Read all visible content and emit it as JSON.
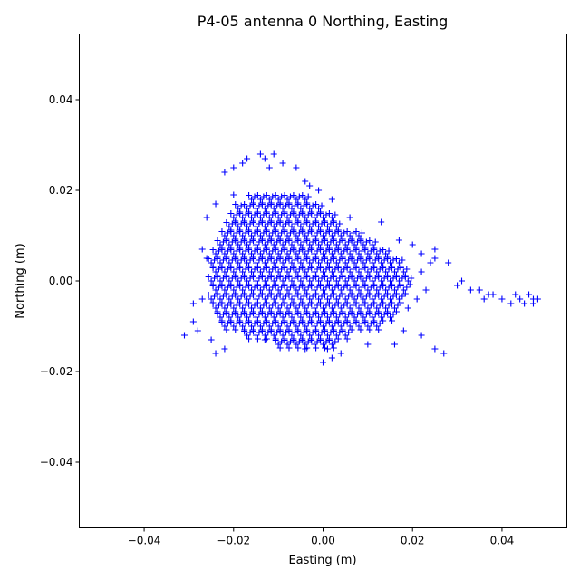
{
  "chart_data": {
    "type": "scatter",
    "title": "P4-05 antenna 0 Northing, Easting",
    "xlabel": "Easting (m)",
    "ylabel": "Northing (m)",
    "xlim": [
      -0.0545,
      0.0545
    ],
    "ylim": [
      -0.0545,
      0.0545
    ],
    "xticks": [
      -0.04,
      -0.02,
      0.0,
      0.02,
      0.04
    ],
    "xtick_labels": [
      "−0.04",
      "−0.02",
      "0.00",
      "0.02",
      "0.04"
    ],
    "yticks": [
      -0.04,
      -0.02,
      0.0,
      0.02,
      0.04
    ],
    "ytick_labels": [
      "−0.04",
      "−0.02",
      "0.00",
      "0.02",
      "0.04"
    ],
    "grid": false,
    "marker": "+",
    "color": "#0000ff",
    "core_rows": [
      {
        "y": 0.018,
        "x": [
          -0.016,
          -0.014,
          -0.012,
          -0.01,
          -0.008,
          -0.006,
          -0.004
        ]
      },
      {
        "y": 0.016,
        "x": [
          -0.019,
          -0.017,
          -0.015,
          -0.013,
          -0.011,
          -0.009,
          -0.007,
          -0.005,
          -0.003,
          -0.001
        ]
      },
      {
        "y": 0.014,
        "x": [
          -0.02,
          -0.018,
          -0.016,
          -0.014,
          -0.012,
          -0.01,
          -0.008,
          -0.006,
          -0.004,
          -0.002,
          0.0,
          0.002
        ]
      },
      {
        "y": 0.012,
        "x": [
          -0.021,
          -0.019,
          -0.017,
          -0.015,
          -0.013,
          -0.011,
          -0.009,
          -0.007,
          -0.005,
          -0.003,
          -0.001,
          0.001,
          0.003
        ]
      },
      {
        "y": 0.01,
        "x": [
          -0.022,
          -0.02,
          -0.018,
          -0.016,
          -0.014,
          -0.012,
          -0.01,
          -0.008,
          -0.006,
          -0.004,
          -0.002,
          0.0,
          0.002,
          0.004,
          0.006,
          0.008
        ]
      },
      {
        "y": 0.008,
        "x": [
          -0.023,
          -0.021,
          -0.019,
          -0.017,
          -0.015,
          -0.013,
          -0.011,
          -0.009,
          -0.007,
          -0.005,
          -0.003,
          -0.001,
          0.001,
          0.003,
          0.005,
          0.007,
          0.009,
          0.011
        ]
      },
      {
        "y": 0.006,
        "x": [
          -0.024,
          -0.022,
          -0.02,
          -0.018,
          -0.016,
          -0.014,
          -0.012,
          -0.01,
          -0.008,
          -0.006,
          -0.004,
          -0.002,
          0.0,
          0.002,
          0.004,
          0.006,
          0.008,
          0.01,
          0.012,
          0.014
        ]
      },
      {
        "y": 0.004,
        "x": [
          -0.025,
          -0.023,
          -0.021,
          -0.019,
          -0.017,
          -0.015,
          -0.013,
          -0.011,
          -0.009,
          -0.007,
          -0.005,
          -0.003,
          -0.001,
          0.001,
          0.003,
          0.005,
          0.007,
          0.009,
          0.011,
          0.013,
          0.015,
          0.017
        ]
      },
      {
        "y": 0.002,
        "x": [
          -0.024,
          -0.022,
          -0.02,
          -0.018,
          -0.016,
          -0.014,
          -0.012,
          -0.01,
          -0.008,
          -0.006,
          -0.004,
          -0.002,
          0.0,
          0.002,
          0.004,
          0.006,
          0.008,
          0.01,
          0.012,
          0.014,
          0.016,
          0.018
        ]
      },
      {
        "y": 0.0,
        "x": [
          -0.025,
          -0.023,
          -0.021,
          -0.019,
          -0.017,
          -0.015,
          -0.013,
          -0.011,
          -0.009,
          -0.007,
          -0.005,
          -0.003,
          -0.001,
          0.001,
          0.003,
          0.005,
          0.007,
          0.009,
          0.011,
          0.013,
          0.015,
          0.017,
          0.019
        ]
      },
      {
        "y": -0.002,
        "x": [
          -0.024,
          -0.022,
          -0.02,
          -0.018,
          -0.016,
          -0.014,
          -0.012,
          -0.01,
          -0.008,
          -0.006,
          -0.004,
          -0.002,
          0.0,
          0.002,
          0.004,
          0.006,
          0.008,
          0.01,
          0.012,
          0.014,
          0.016,
          0.018
        ]
      },
      {
        "y": -0.004,
        "x": [
          -0.025,
          -0.023,
          -0.021,
          -0.019,
          -0.017,
          -0.015,
          -0.013,
          -0.011,
          -0.009,
          -0.007,
          -0.005,
          -0.003,
          -0.001,
          0.001,
          0.003,
          0.005,
          0.007,
          0.009,
          0.011,
          0.013,
          0.015,
          0.017
        ]
      },
      {
        "y": -0.006,
        "x": [
          -0.024,
          -0.022,
          -0.02,
          -0.018,
          -0.016,
          -0.014,
          -0.012,
          -0.01,
          -0.008,
          -0.006,
          -0.004,
          -0.002,
          0.0,
          0.002,
          0.004,
          0.006,
          0.008,
          0.01,
          0.012,
          0.014,
          0.016
        ]
      },
      {
        "y": -0.008,
        "x": [
          -0.023,
          -0.021,
          -0.019,
          -0.017,
          -0.015,
          -0.013,
          -0.011,
          -0.009,
          -0.007,
          -0.005,
          -0.003,
          -0.001,
          0.001,
          0.003,
          0.005,
          0.007,
          0.009,
          0.011,
          0.013,
          0.015
        ]
      },
      {
        "y": -0.01,
        "x": [
          -0.022,
          -0.02,
          -0.018,
          -0.016,
          -0.014,
          -0.012,
          -0.01,
          -0.008,
          -0.006,
          -0.004,
          -0.002,
          0.0,
          0.002,
          0.004,
          0.006,
          0.008,
          0.01,
          0.012
        ]
      },
      {
        "y": -0.012,
        "x": [
          -0.017,
          -0.015,
          -0.013,
          -0.011,
          -0.009,
          -0.007,
          -0.005,
          -0.003,
          -0.001,
          0.001,
          0.003,
          0.005
        ]
      },
      {
        "y": -0.014,
        "x": [
          -0.01,
          -0.008,
          -0.006,
          -0.004,
          -0.002,
          0.0,
          0.002
        ]
      }
    ],
    "outliers": [
      [
        -0.031,
        -0.012
      ],
      [
        -0.029,
        -0.009
      ],
      [
        -0.028,
        -0.011
      ],
      [
        -0.029,
        -0.005
      ],
      [
        -0.027,
        -0.004
      ],
      [
        -0.022,
        0.024
      ],
      [
        -0.02,
        0.025
      ],
      [
        -0.018,
        0.026
      ],
      [
        -0.017,
        0.027
      ],
      [
        -0.014,
        0.028
      ],
      [
        -0.013,
        0.027
      ],
      [
        -0.011,
        0.028
      ],
      [
        -0.009,
        0.026
      ],
      [
        -0.012,
        0.025
      ],
      [
        -0.006,
        0.025
      ],
      [
        -0.004,
        0.022
      ],
      [
        -0.003,
        0.021
      ],
      [
        -0.001,
        0.02
      ],
      [
        0.002,
        0.018
      ],
      [
        0.006,
        0.014
      ],
      [
        0.013,
        0.013
      ],
      [
        0.017,
        0.009
      ],
      [
        0.02,
        0.008
      ],
      [
        0.022,
        0.006
      ],
      [
        0.025,
        0.005
      ],
      [
        0.025,
        0.007
      ],
      [
        0.028,
        0.004
      ],
      [
        0.03,
        -0.001
      ],
      [
        0.031,
        0.0
      ],
      [
        0.033,
        -0.002
      ],
      [
        0.035,
        -0.002
      ],
      [
        0.037,
        -0.003
      ],
      [
        0.036,
        -0.004
      ],
      [
        0.038,
        -0.003
      ],
      [
        0.04,
        -0.004
      ],
      [
        0.042,
        -0.005
      ],
      [
        0.043,
        -0.003
      ],
      [
        0.044,
        -0.004
      ],
      [
        0.045,
        -0.005
      ],
      [
        0.046,
        -0.003
      ],
      [
        0.047,
        -0.004
      ],
      [
        0.048,
        -0.004
      ],
      [
        0.047,
        -0.005
      ],
      [
        0.025,
        -0.015
      ],
      [
        0.027,
        -0.016
      ],
      [
        0.022,
        -0.012
      ],
      [
        0.016,
        -0.014
      ],
      [
        0.004,
        -0.016
      ],
      [
        0.002,
        -0.017
      ],
      [
        0.0,
        -0.018
      ],
      [
        0.001,
        -0.015
      ],
      [
        -0.004,
        -0.015
      ],
      [
        -0.013,
        -0.013
      ],
      [
        -0.022,
        -0.015
      ],
      [
        -0.024,
        -0.016
      ],
      [
        -0.025,
        -0.013
      ],
      [
        -0.02,
        0.019
      ],
      [
        -0.024,
        0.017
      ],
      [
        -0.026,
        0.014
      ],
      [
        -0.027,
        0.007
      ],
      [
        -0.026,
        0.005
      ],
      [
        0.01,
        -0.014
      ],
      [
        0.018,
        -0.011
      ],
      [
        0.019,
        -0.006
      ],
      [
        0.021,
        -0.004
      ],
      [
        0.023,
        -0.002
      ],
      [
        0.022,
        0.002
      ],
      [
        0.024,
        0.004
      ]
    ]
  }
}
